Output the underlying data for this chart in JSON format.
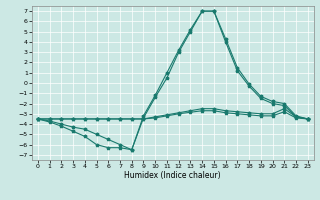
{
  "xlabel": "Humidex (Indice chaleur)",
  "xlim": [
    -0.5,
    23.5
  ],
  "ylim": [
    -7.5,
    7.5
  ],
  "yticks": [
    -7,
    -6,
    -5,
    -4,
    -3,
    -2,
    -1,
    0,
    1,
    2,
    3,
    4,
    5,
    6,
    7
  ],
  "xticks": [
    0,
    1,
    2,
    3,
    4,
    5,
    6,
    7,
    8,
    9,
    10,
    11,
    12,
    13,
    14,
    15,
    16,
    17,
    18,
    19,
    20,
    21,
    22,
    23
  ],
  "bg_color": "#cce8e4",
  "grid_color": "#ffffff",
  "line_color": "#1a7a6e",
  "line1_x": [
    0,
    1,
    2,
    3,
    4,
    5,
    6,
    7,
    8,
    9,
    10,
    11,
    12,
    13,
    14,
    15,
    16,
    17,
    18,
    19,
    20,
    21,
    22,
    23
  ],
  "line1_y": [
    -3.5,
    -3.8,
    -4.2,
    -4.7,
    -5.2,
    -6.0,
    -6.3,
    -6.3,
    -6.5,
    -3.4,
    -1.4,
    0.5,
    3.0,
    5.0,
    7.0,
    7.0,
    4.0,
    1.2,
    -0.3,
    -1.5,
    -2.0,
    -2.2,
    -3.3,
    -3.5
  ],
  "line2_x": [
    0,
    1,
    2,
    3,
    4,
    5,
    6,
    7,
    8,
    9,
    10,
    11,
    12,
    13,
    14,
    15,
    16,
    17,
    18,
    19,
    20,
    21,
    22,
    23
  ],
  "line2_y": [
    -3.5,
    -3.7,
    -4.0,
    -4.3,
    -4.5,
    -5.0,
    -5.5,
    -6.0,
    -6.5,
    -3.2,
    -1.2,
    1.0,
    3.2,
    5.2,
    7.0,
    7.0,
    4.3,
    1.5,
    -0.1,
    -1.3,
    -1.8,
    -2.0,
    -3.2,
    -3.5
  ],
  "line3_x": [
    0,
    1,
    2,
    3,
    4,
    5,
    6,
    7,
    8,
    9,
    10,
    11,
    12,
    13,
    14,
    15,
    16,
    17,
    18,
    19,
    20,
    21,
    22,
    23
  ],
  "line3_y": [
    -3.5,
    -3.5,
    -3.5,
    -3.5,
    -3.5,
    -3.5,
    -3.5,
    -3.5,
    -3.5,
    -3.5,
    -3.3,
    -3.1,
    -2.9,
    -2.7,
    -2.5,
    -2.5,
    -2.7,
    -2.8,
    -2.9,
    -3.0,
    -3.0,
    -2.5,
    -3.3,
    -3.5
  ],
  "line4_x": [
    0,
    1,
    2,
    3,
    4,
    5,
    6,
    7,
    8,
    9,
    10,
    11,
    12,
    13,
    14,
    15,
    16,
    17,
    18,
    19,
    20,
    21,
    22,
    23
  ],
  "line4_y": [
    -3.5,
    -3.5,
    -3.5,
    -3.5,
    -3.5,
    -3.5,
    -3.5,
    -3.5,
    -3.5,
    -3.5,
    -3.4,
    -3.2,
    -3.0,
    -2.85,
    -2.7,
    -2.7,
    -2.9,
    -3.0,
    -3.1,
    -3.2,
    -3.2,
    -2.8,
    -3.4,
    -3.5
  ]
}
